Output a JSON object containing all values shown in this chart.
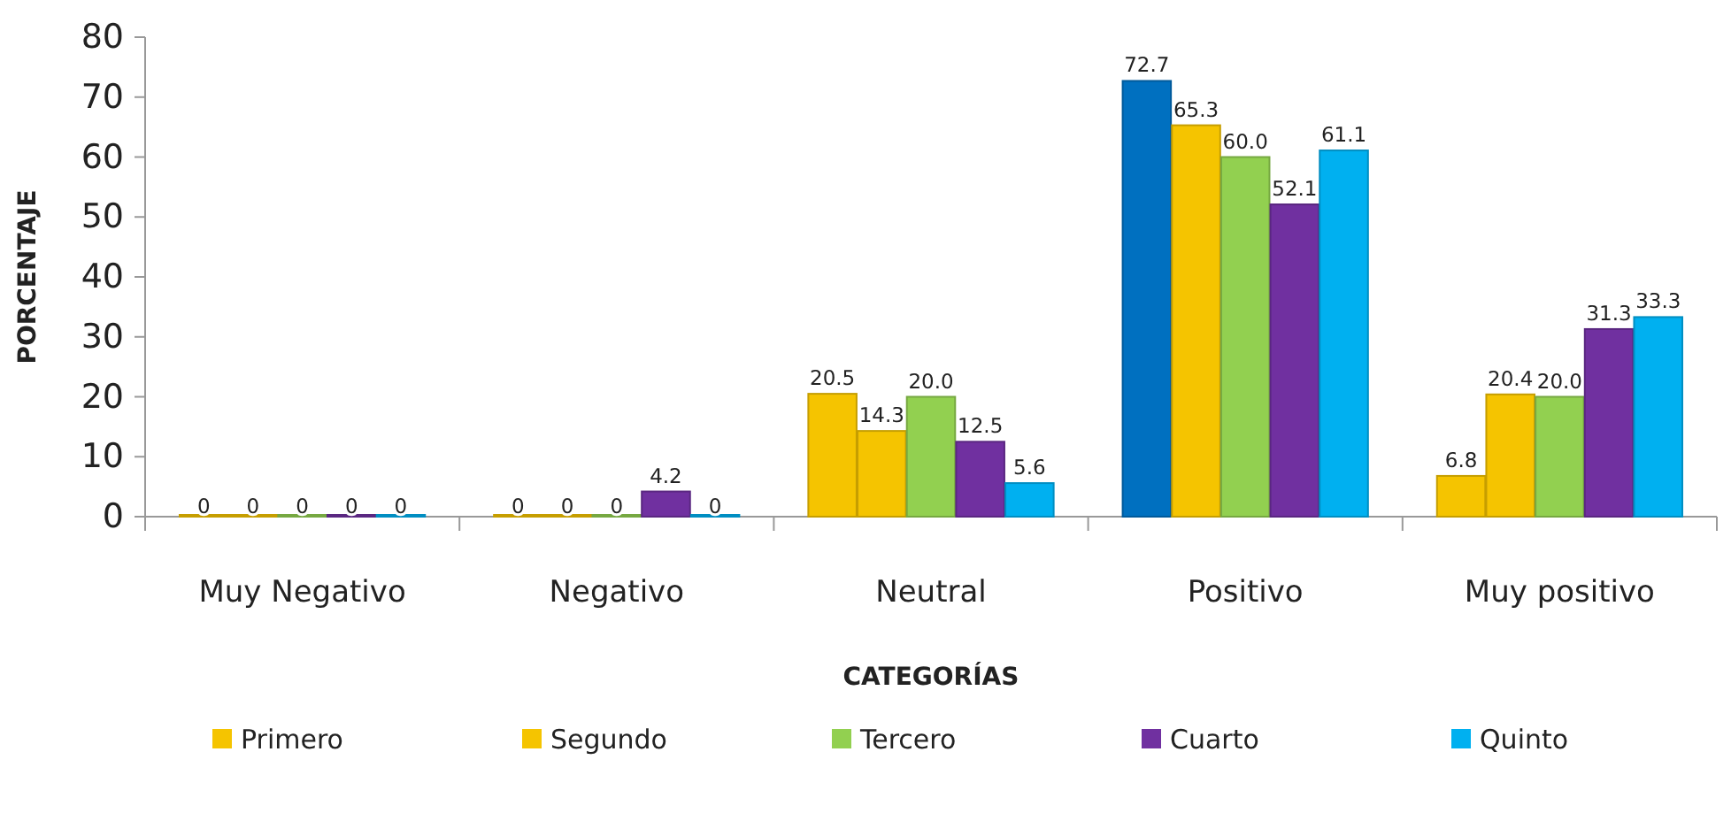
{
  "chart_data": {
    "type": "bar",
    "xlabel": "CATEGORÍAS",
    "ylabel": "PORCENTAJE",
    "categories": [
      "Muy Negativo",
      "Negativo",
      "Neutral",
      "Positivo",
      "Muy positivo"
    ],
    "series": [
      {
        "name": "Primero",
        "color": "#f5c400",
        "colors": [
          "#f5c400",
          "#f5c400",
          "#f5c400",
          "#0070c0",
          "#f5c400"
        ],
        "values": [
          0,
          0,
          20.5,
          72.7,
          6.8
        ],
        "value_labels": [
          "0",
          "0",
          "20.5",
          "72.7",
          "6.8"
        ]
      },
      {
        "name": "Segundo",
        "color": "#f5c400",
        "values": [
          0,
          0,
          14.3,
          65.3,
          20.4
        ],
        "value_labels": [
          "0",
          "0",
          "14.3",
          "65.3",
          "20.4"
        ]
      },
      {
        "name": "Tercero",
        "color": "#92d050",
        "values": [
          0,
          0,
          20.0,
          60.0,
          20.0
        ],
        "value_labels": [
          "0",
          "0",
          "20.0",
          "60.0",
          "20.0"
        ]
      },
      {
        "name": "Cuarto",
        "color": "#7030a0",
        "values": [
          0,
          4.2,
          12.5,
          52.1,
          31.3
        ],
        "value_labels": [
          "0",
          "4.2",
          "12.5",
          "52.1",
          "31.3"
        ]
      },
      {
        "name": "Quinto",
        "color": "#00b0f0",
        "values": [
          0,
          0,
          5.6,
          61.1,
          33.3
        ],
        "value_labels": [
          "0",
          "0",
          "5.6",
          "61.1",
          "33.3"
        ]
      }
    ],
    "ylim": [
      0,
      80
    ],
    "yticks": [
      0,
      10,
      20,
      30,
      40,
      50,
      60,
      70,
      80
    ],
    "grid": false,
    "legend": "bottom"
  }
}
